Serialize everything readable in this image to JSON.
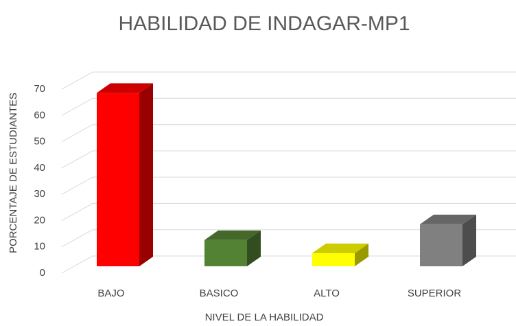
{
  "chart_data": {
    "type": "bar3d",
    "title": "HABILIDAD DE INDAGAR-MP1",
    "x_label": "NIVEL DE LA HABILIDAD",
    "y_label": "PORCENTAJE DE ESTUDIANTES",
    "categories": [
      "BAJO",
      "BASICO",
      "ALTO",
      "SUPERIOR"
    ],
    "values": [
      66,
      10,
      5,
      16
    ],
    "colors": [
      "#ff0000",
      "#548235",
      "#ffff00",
      "#808080"
    ],
    "ylim": [
      0,
      70
    ],
    "yticks": [
      0,
      10,
      20,
      30,
      40,
      50,
      60,
      70
    ],
    "grid": true
  }
}
